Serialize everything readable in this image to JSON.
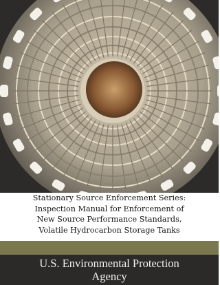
{
  "cover": {
    "title_lines": [
      "Stationary Source Enforcement Series:",
      "Inspection Manual for Enforcement of",
      "New Source Performance Standards,",
      "Volatile Hydrocarbon Storage Tanks"
    ],
    "publisher_lines": [
      "U.S. Environmental Protection",
      "Agency"
    ]
  }
}
